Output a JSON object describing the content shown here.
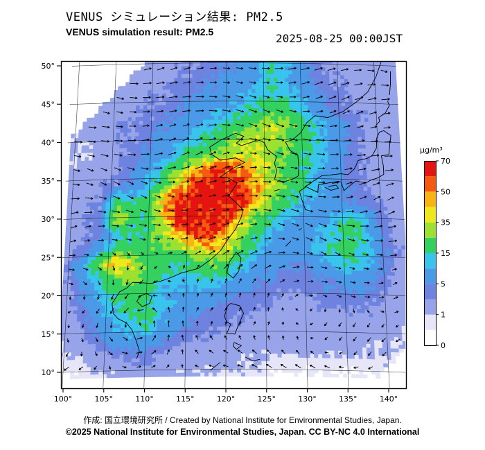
{
  "header": {
    "title_ja": "VENUS シミュレーション結果: PM2.5",
    "title_en": "VENUS simulation result: PM2.5",
    "timestamp": "2025-08-25 00:00JST"
  },
  "footer": {
    "line1": "作成: 国立環境研究所 / Created by National Institute for Environmental Studies, Japan.",
    "line2": "©2025 National Institute for Environmental Studies, Japan. CC BY-NC 4.0 International"
  },
  "chart_data": {
    "type": "heatmap",
    "title": "VENUS シミュレーション結果: PM2.5",
    "subtitle": "VENUS simulation result: PM2.5",
    "timestamp": "2025-08-25 00:00JST",
    "variable": "PM2.5",
    "units": "µg/m³",
    "x_axis": {
      "tick_labels": [
        "100°",
        "105°",
        "110°",
        "115°",
        "120°",
        "125°",
        "130°",
        "135°",
        "140°"
      ],
      "tick_values": [
        100,
        105,
        110,
        115,
        120,
        125,
        130,
        135,
        140
      ],
      "range": [
        100,
        142.3
      ]
    },
    "y_axis": {
      "tick_labels": [
        "50°",
        "45°",
        "40°",
        "35°",
        "30°",
        "25°",
        "20°",
        "15°",
        "10°"
      ],
      "tick_values": [
        50,
        45,
        40,
        35,
        30,
        25,
        20,
        15,
        10
      ],
      "range": [
        7.9,
        50.6
      ]
    },
    "colorbar": {
      "label": "µg/m³",
      "tick_values": [
        0,
        1,
        5,
        15,
        35,
        50,
        70
      ],
      "stops": [
        {
          "upto": 0.5,
          "color": "#ffffff"
        },
        {
          "upto": 1,
          "color": "#e6e6f8"
        },
        {
          "upto": 3,
          "color": "#98a4ea"
        },
        {
          "upto": 5,
          "color": "#6e82e0"
        },
        {
          "upto": 10,
          "color": "#4a9ae8"
        },
        {
          "upto": 15,
          "color": "#38c4ec"
        },
        {
          "upto": 25,
          "color": "#34d060"
        },
        {
          "upto": 35,
          "color": "#9ce032"
        },
        {
          "upto": 42,
          "color": "#f0e81c"
        },
        {
          "upto": 50,
          "color": "#f8b414"
        },
        {
          "upto": 60,
          "color": "#f55a10"
        },
        {
          "upto": 9999,
          "color": "#e41410"
        }
      ],
      "segment_reps": [
        0.25,
        0.75,
        2,
        4,
        8,
        12,
        20,
        30,
        40,
        46,
        55,
        65
      ]
    },
    "grid": {
      "lon_start": 100,
      "lon_step": 2,
      "lat_start": 50,
      "lat_step": -2,
      "ncols": 22,
      "nrows": 21,
      "values": [
        [
          null,
          null,
          null,
          null,
          null,
          2,
          2,
          3,
          3,
          4,
          5,
          6,
          8,
          14,
          12,
          6,
          4,
          3,
          2,
          2,
          2,
          2
        ],
        [
          null,
          null,
          null,
          null,
          2,
          2,
          3,
          3,
          4,
          5,
          6,
          7,
          9,
          16,
          11,
          7,
          5,
          3,
          3,
          2,
          2,
          2
        ],
        [
          null,
          null,
          null,
          2,
          2,
          3,
          3,
          4,
          5,
          6,
          7,
          9,
          12,
          15,
          13,
          9,
          6,
          4,
          3,
          2,
          2,
          2
        ],
        [
          null,
          null,
          2,
          2,
          3,
          3,
          4,
          5,
          6,
          8,
          10,
          13,
          16,
          19,
          17,
          11,
          7,
          5,
          3,
          3,
          2,
          2
        ],
        [
          null,
          2,
          2,
          3,
          3,
          4,
          5,
          7,
          9,
          12,
          16,
          20,
          26,
          32,
          28,
          19,
          12,
          8,
          5,
          3,
          2,
          2
        ],
        [
          1,
          1,
          2,
          3,
          3,
          5,
          7,
          9,
          13,
          18,
          24,
          30,
          34,
          32,
          26,
          20,
          14,
          8,
          5,
          3,
          2,
          2
        ],
        [
          1,
          1,
          2,
          3,
          4,
          6,
          9,
          14,
          20,
          26,
          32,
          36,
          34,
          30,
          24,
          18,
          12,
          8,
          5,
          3,
          2,
          2
        ],
        [
          1,
          2,
          2,
          3,
          5,
          9,
          16,
          28,
          45,
          58,
          62,
          52,
          40,
          30,
          22,
          16,
          10,
          6,
          4,
          3,
          2,
          2
        ],
        [
          2,
          2,
          3,
          4,
          6,
          12,
          24,
          45,
          62,
          70,
          70,
          62,
          46,
          32,
          22,
          16,
          12,
          8,
          5,
          3,
          2,
          2
        ],
        [
          2,
          3,
          3,
          22,
          14,
          22,
          48,
          66,
          70,
          70,
          70,
          64,
          42,
          26,
          16,
          11,
          8,
          6,
          5,
          4,
          3,
          2
        ],
        [
          2,
          3,
          4,
          35,
          20,
          14,
          42,
          66,
          70,
          70,
          66,
          46,
          26,
          16,
          10,
          8,
          8,
          10,
          16,
          10,
          4,
          2
        ],
        [
          2,
          3,
          4,
          14,
          14,
          20,
          32,
          50,
          62,
          66,
          52,
          30,
          18,
          10,
          8,
          8,
          10,
          14,
          18,
          12,
          5,
          2
        ],
        [
          2,
          4,
          8,
          14,
          18,
          20,
          24,
          30,
          40,
          46,
          36,
          20,
          12,
          8,
          6,
          8,
          12,
          18,
          20,
          13,
          6,
          3
        ],
        [
          3,
          10,
          28,
          52,
          34,
          22,
          18,
          16,
          20,
          26,
          22,
          14,
          8,
          6,
          5,
          6,
          8,
          12,
          14,
          10,
          5,
          2
        ],
        [
          3,
          7,
          14,
          24,
          30,
          22,
          15,
          12,
          14,
          16,
          12,
          8,
          6,
          5,
          4,
          4,
          5,
          6,
          8,
          6,
          4,
          2
        ],
        [
          2,
          5,
          10,
          16,
          20,
          15,
          10,
          8,
          8,
          8,
          6,
          5,
          4,
          3,
          3,
          3,
          4,
          4,
          5,
          4,
          3,
          2
        ],
        [
          2,
          4,
          8,
          12,
          16,
          18,
          12,
          8,
          6,
          5,
          4,
          4,
          3,
          3,
          2,
          2,
          3,
          3,
          3,
          3,
          2,
          2
        ],
        [
          2,
          3,
          6,
          10,
          14,
          16,
          10,
          6,
          4,
          4,
          3,
          3,
          2,
          2,
          2,
          2,
          2,
          2,
          2,
          2,
          2,
          1
        ],
        [
          1,
          2,
          4,
          6,
          8,
          8,
          6,
          4,
          3,
          3,
          2,
          2,
          2,
          2,
          2,
          2,
          2,
          2,
          2,
          1,
          1,
          1
        ],
        [
          1,
          1,
          2,
          3,
          4,
          4,
          3,
          2,
          2,
          2,
          2,
          1,
          1,
          1,
          1,
          1,
          1,
          1,
          1,
          1,
          1,
          null
        ],
        [
          0.5,
          0.5,
          1,
          1,
          2,
          2,
          2,
          1,
          1,
          1,
          1,
          1,
          1,
          0.5,
          0.5,
          0.5,
          0.5,
          0.5,
          0.5,
          0.5,
          null,
          null
        ]
      ]
    },
    "wind": {
      "style": "vector-arrows",
      "cyclone": {
        "lon": 109.3,
        "lat": 16.3
      },
      "midlatitude_flow": "westerly",
      "tropical_flow": "easterly"
    },
    "grid_lines": {
      "lon_interval": 5,
      "lat_interval": 5
    }
  }
}
